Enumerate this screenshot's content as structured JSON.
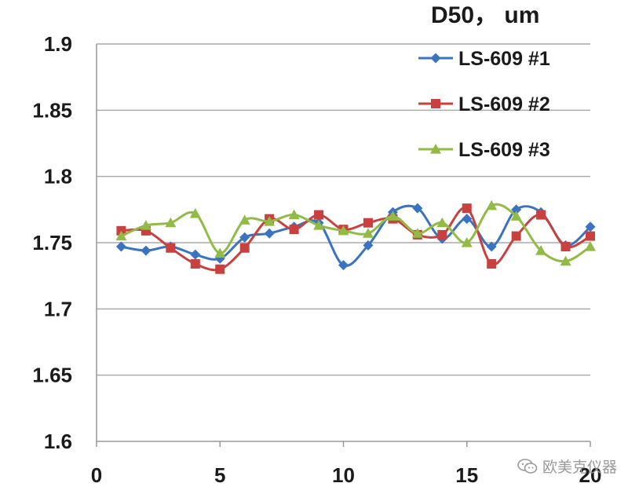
{
  "chart_data": {
    "type": "line",
    "title": "D50，  um",
    "xlabel": "",
    "ylabel": "",
    "xlim": [
      0,
      20
    ],
    "ylim": [
      1.6,
      1.9
    ],
    "x_ticks": [
      0,
      5,
      10,
      15,
      20
    ],
    "y_ticks": [
      1.6,
      1.65,
      1.7,
      1.75,
      1.8,
      1.85,
      1.9
    ],
    "y_tick_labels": [
      "1.6",
      "1.65",
      "1.7",
      "1.75",
      "1.8",
      "1.85",
      "1.9"
    ],
    "grid": "horizontal",
    "legend_position": "top-right",
    "x": [
      1,
      2,
      3,
      4,
      5,
      6,
      7,
      8,
      9,
      10,
      11,
      12,
      13,
      14,
      15,
      16,
      17,
      18,
      19,
      20
    ],
    "series": [
      {
        "name": "LS-609 #1",
        "color": "#3a73c0",
        "marker": "diamond",
        "values": [
          1.747,
          1.744,
          1.747,
          1.741,
          1.738,
          1.754,
          1.757,
          1.762,
          1.765,
          1.733,
          1.748,
          1.773,
          1.776,
          1.753,
          1.768,
          1.747,
          1.775,
          1.773,
          1.748,
          1.762
        ]
      },
      {
        "name": "LS-609 #2",
        "color": "#c8413f",
        "marker": "square",
        "values": [
          1.759,
          1.759,
          1.746,
          1.734,
          1.73,
          1.746,
          1.768,
          1.76,
          1.771,
          1.76,
          1.765,
          1.768,
          1.756,
          1.756,
          1.776,
          1.734,
          1.755,
          1.771,
          1.747,
          1.755
        ]
      },
      {
        "name": "LS-609 #3",
        "color": "#92bb46",
        "marker": "triangle",
        "values": [
          1.755,
          1.763,
          1.765,
          1.772,
          1.742,
          1.767,
          1.766,
          1.771,
          1.763,
          1.759,
          1.757,
          1.77,
          1.757,
          1.765,
          1.75,
          1.778,
          1.77,
          1.744,
          1.736,
          1.747
        ]
      }
    ]
  },
  "watermark": {
    "text": "欧美克仪器",
    "icon": "wechat-icon"
  }
}
